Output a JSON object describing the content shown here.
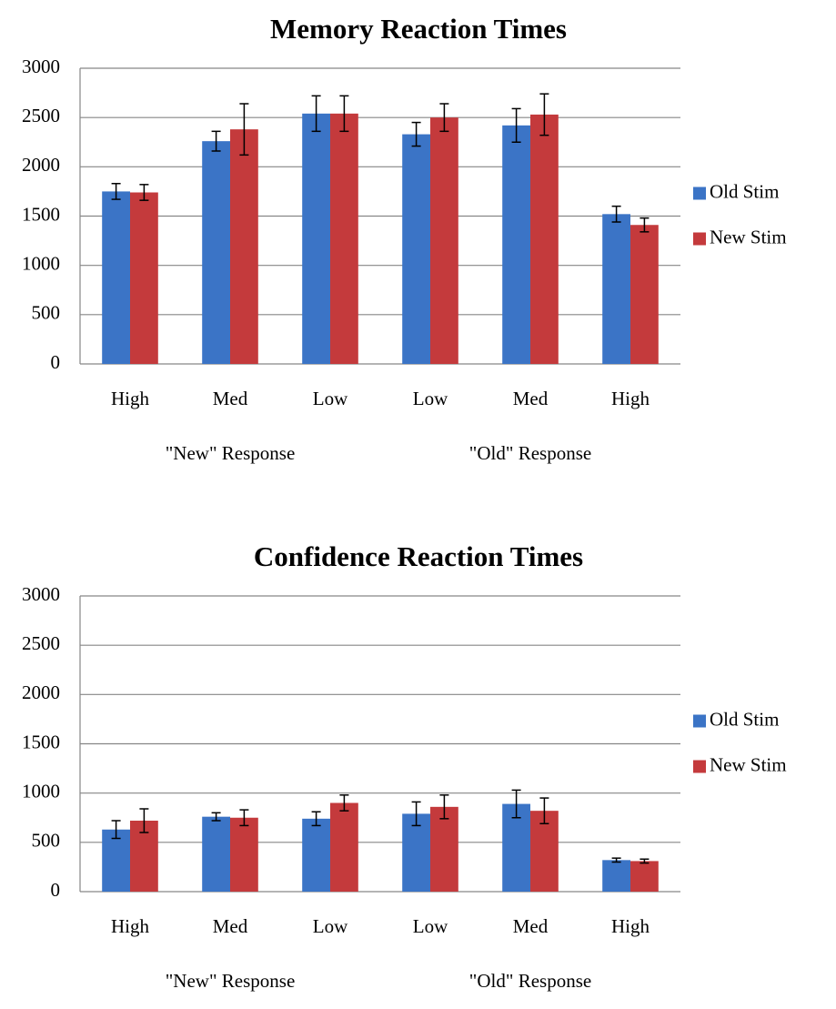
{
  "chart_data": [
    {
      "type": "bar",
      "title": "Memory Reaction Times",
      "groups": [
        {
          "name": "\"New\" Response",
          "categories": [
            "High",
            "Med",
            "Low"
          ]
        },
        {
          "name": "\"Old\" Response",
          "categories": [
            "Low",
            "Med",
            "High"
          ]
        }
      ],
      "series": [
        {
          "name": "Old Stim",
          "color": "#3b74c6",
          "values": [
            1750,
            2260,
            2540,
            2330,
            2420,
            1520
          ],
          "errors": [
            80,
            100,
            180,
            120,
            170,
            80
          ]
        },
        {
          "name": "New Stim",
          "color": "#c43a3c",
          "values": [
            1740,
            2380,
            2540,
            2500,
            2530,
            1410
          ],
          "errors": [
            80,
            260,
            180,
            140,
            210,
            70
          ]
        }
      ],
      "ylim": [
        0,
        3000
      ],
      "yticks": [
        0,
        500,
        1000,
        1500,
        2000,
        2500,
        3000
      ],
      "grid": true,
      "legend": "right"
    },
    {
      "type": "bar",
      "title": "Confidence Reaction Times",
      "groups": [
        {
          "name": "\"New\" Response",
          "categories": [
            "High",
            "Med",
            "Low"
          ]
        },
        {
          "name": "\"Old\" Response",
          "categories": [
            "Low",
            "Med",
            "High"
          ]
        }
      ],
      "series": [
        {
          "name": "Old Stim",
          "color": "#3b74c6",
          "values": [
            630,
            760,
            740,
            790,
            890,
            320
          ],
          "errors": [
            90,
            40,
            70,
            120,
            140,
            20
          ]
        },
        {
          "name": "New Stim",
          "color": "#c43a3c",
          "values": [
            720,
            750,
            900,
            860,
            820,
            310
          ],
          "errors": [
            120,
            80,
            80,
            120,
            130,
            20
          ]
        }
      ],
      "ylim": [
        0,
        3000
      ],
      "yticks": [
        0,
        500,
        1000,
        1500,
        2000,
        2500,
        3000
      ],
      "grid": true,
      "legend": "right"
    }
  ]
}
